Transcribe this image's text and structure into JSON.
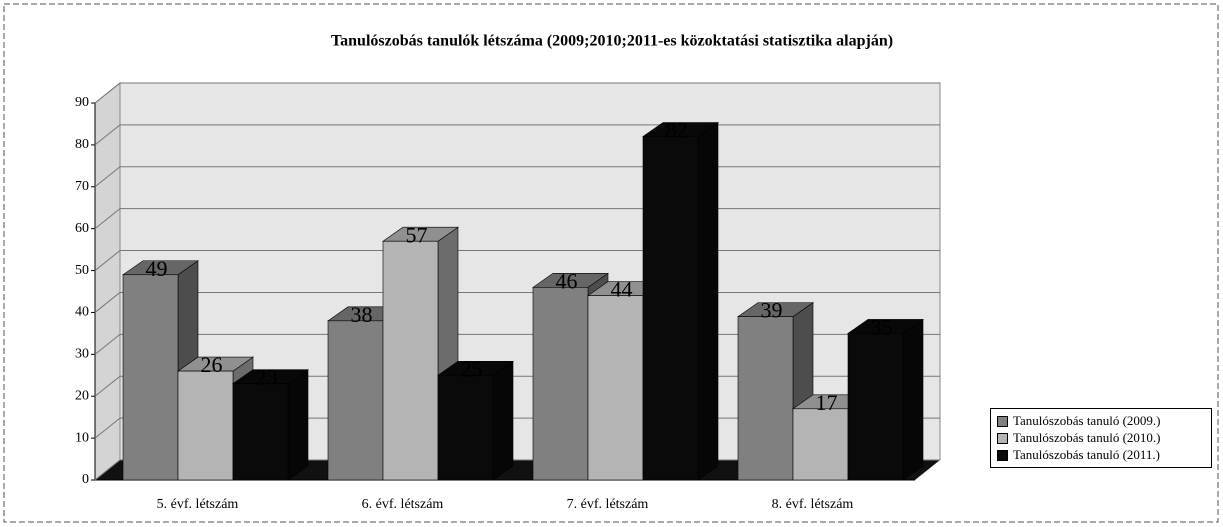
{
  "chart_data": {
    "type": "bar3d",
    "title": "Tanulószobás tanulók létszáma (2009;2010;2011-es közoktatási statisztika alapján)",
    "categories": [
      "5. évf. létszám",
      "6. évf. létszám",
      "7. évf. létszám",
      "8. évf. létszám"
    ],
    "series": [
      {
        "name": "Tanulószobás tanuló (2009.)",
        "color": "#808080",
        "values": [
          49,
          38,
          46,
          39
        ]
      },
      {
        "name": "Tanulószobás tanuló (2010.)",
        "color": "#b4b4b4",
        "values": [
          26,
          57,
          44,
          17
        ]
      },
      {
        "name": "Tanulószobás tanuló (2011.)",
        "color": "#0a0a0a",
        "values": [
          23,
          25,
          82,
          35
        ]
      }
    ],
    "ylim": [
      0,
      90
    ],
    "yticks": [
      0,
      10,
      20,
      30,
      40,
      50,
      60,
      70,
      80,
      90
    ],
    "grid": true,
    "legend": "bottom-right"
  }
}
